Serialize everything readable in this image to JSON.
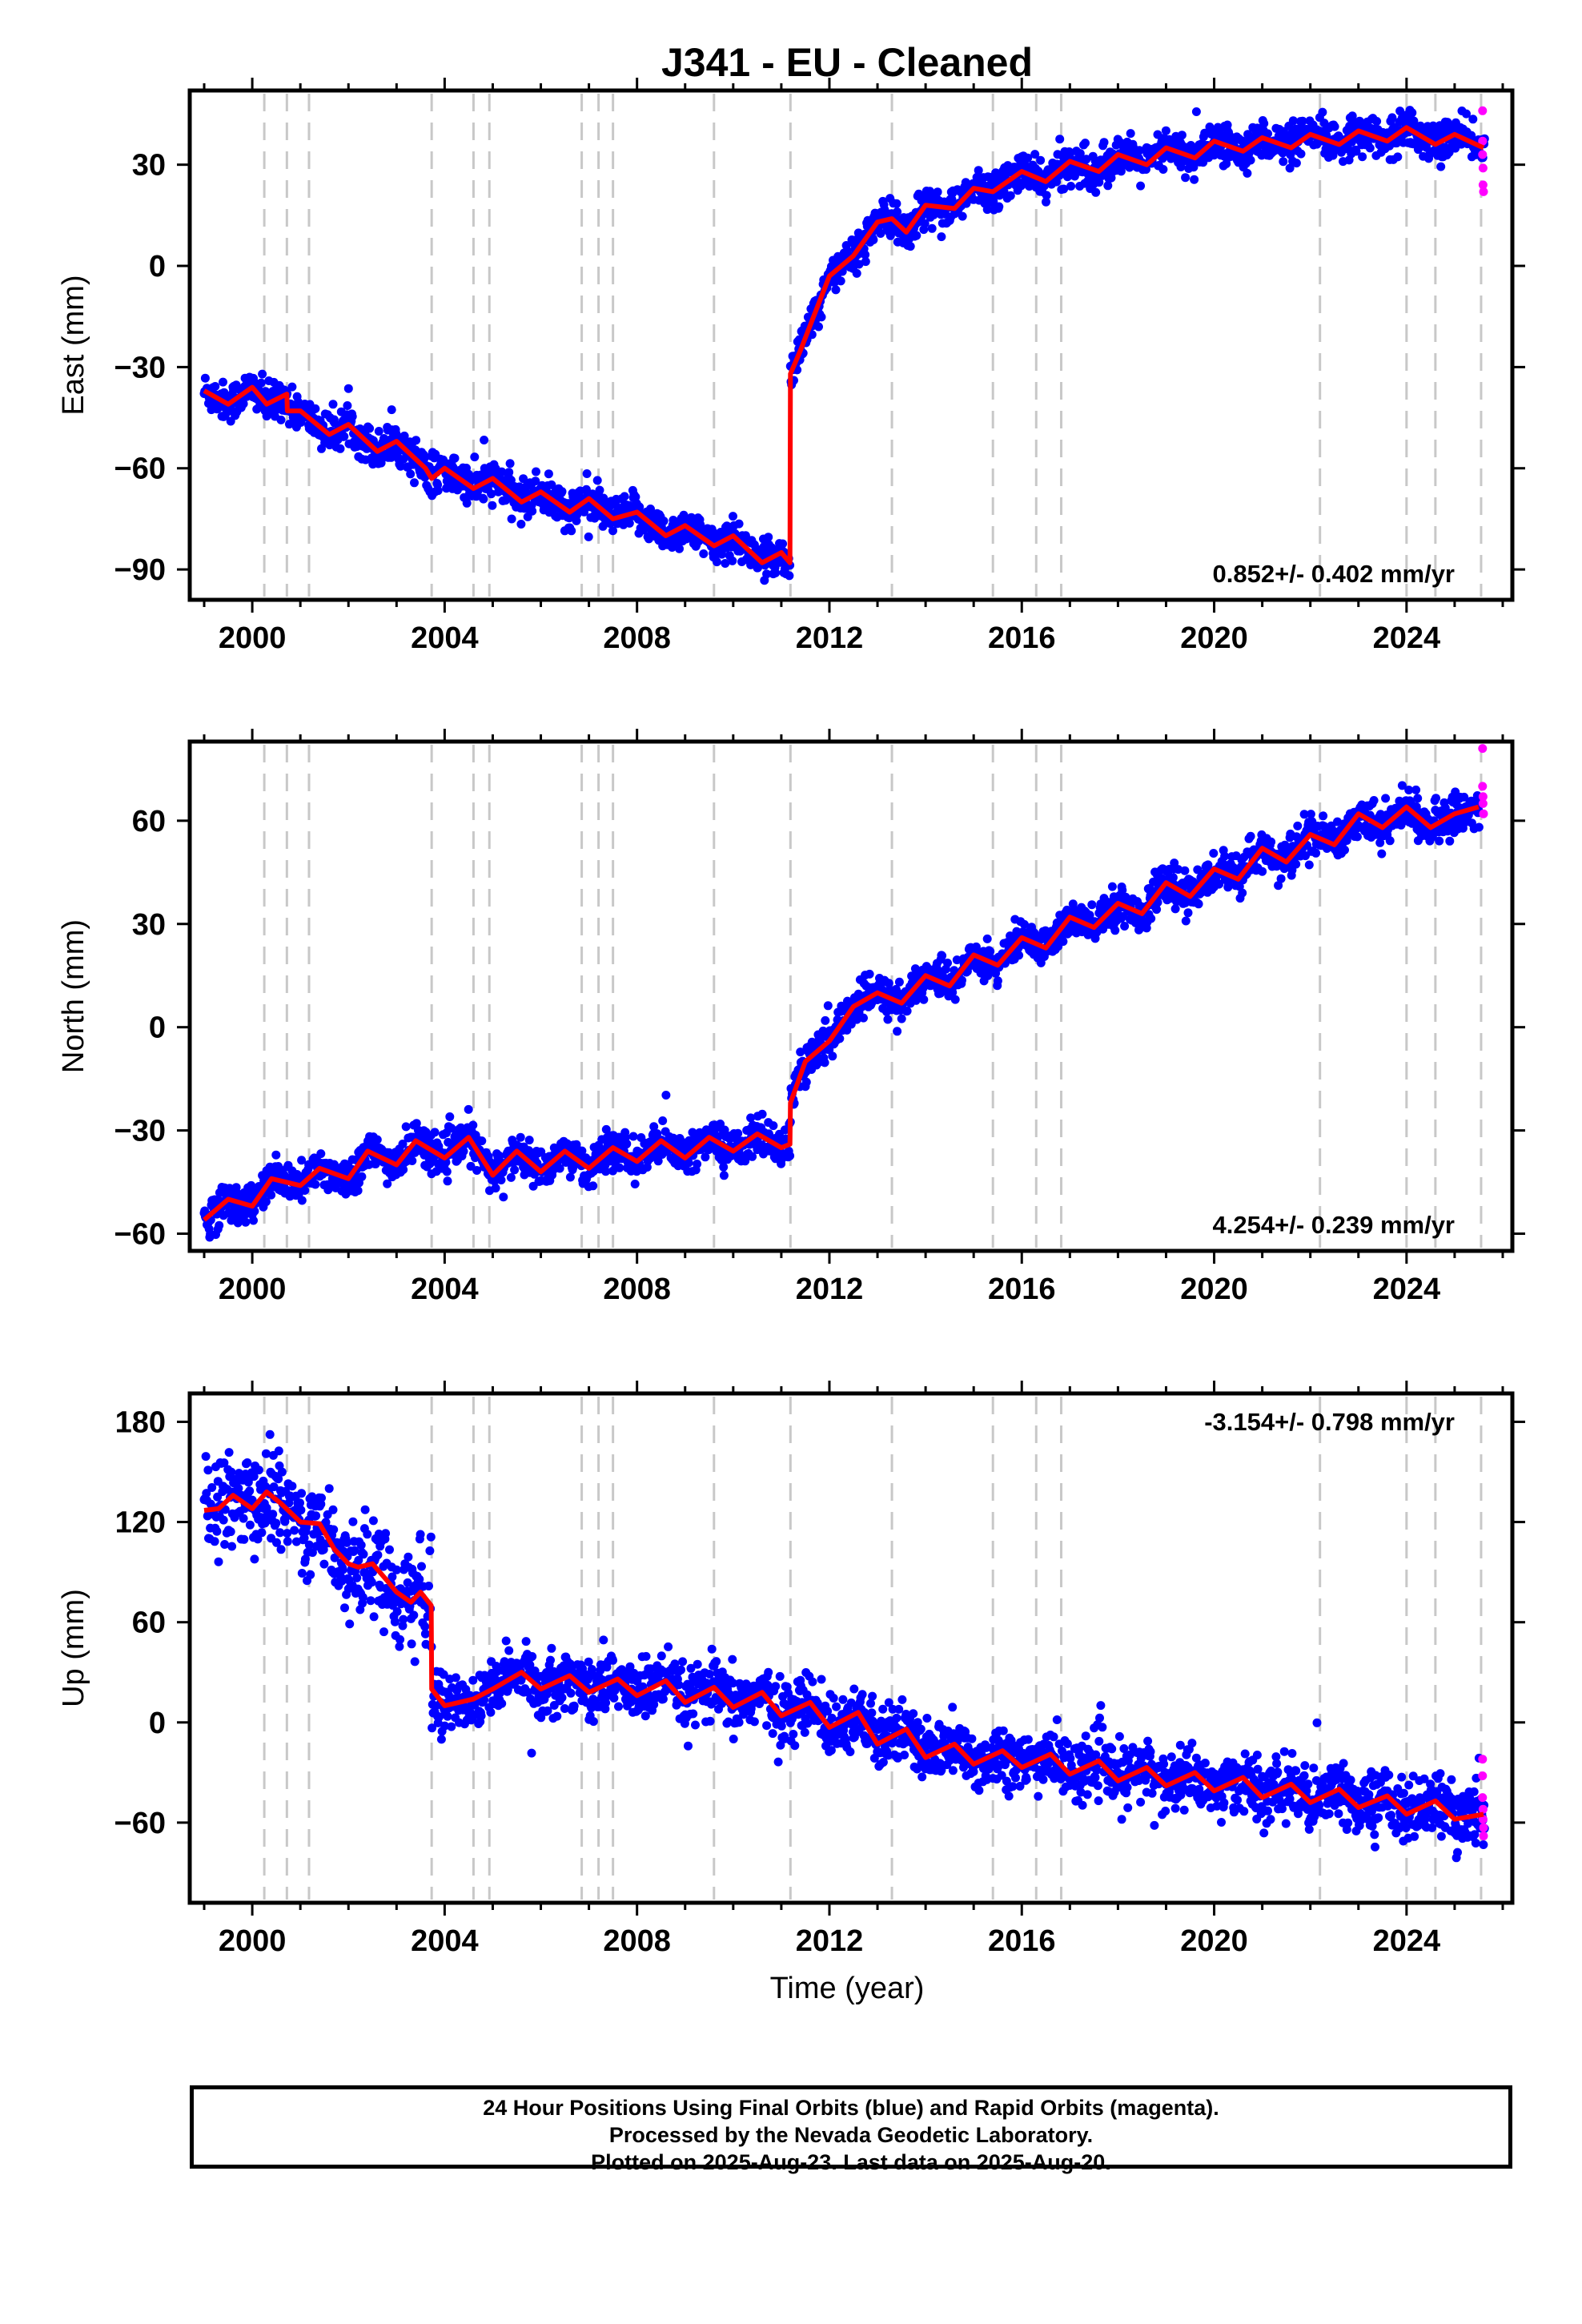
{
  "title": "J341  - EU - Cleaned",
  "colors": {
    "final": "#0000ff",
    "rapid": "#ff00ff",
    "model": "#ff0000",
    "event_line": "#c8c8c8",
    "frame": "#000000"
  },
  "caption": {
    "line1": "24 Hour Positions Using Final Orbits (blue) and Rapid Orbits (magenta).",
    "line2": "Processed by the Nevada Geodetic Laboratory.",
    "line3": "Plotted on 2025-Aug-23. Last data on 2025-Aug-20."
  },
  "chart_data": [
    {
      "type": "scatter",
      "component": "east",
      "ylabel": "East (mm)",
      "xlabel": "",
      "xlim": [
        1998.7,
        2026.2
      ],
      "ylim": [
        -99,
        52
      ],
      "xticks": [
        2000,
        2004,
        2008,
        2012,
        2016,
        2020,
        2024
      ],
      "yticks": [
        -90,
        -60,
        -30,
        0,
        30
      ],
      "rate_label": "0.852+/- 0.402 mm/yr",
      "rate_label_position": "bottom-right",
      "event_lines": [
        2000.25,
        2000.72,
        2001.18,
        2003.73,
        2004.6,
        2004.93,
        2006.85,
        2007.2,
        2007.5,
        2009.6,
        2011.19,
        2013.3,
        2015.4,
        2016.3,
        2016.82,
        2022.2,
        2024.0,
        2024.6,
        2025.55
      ],
      "model": {
        "x": [
          1999.0,
          1999.5,
          2000.0,
          2000.3,
          2000.72,
          2000.73,
          2001.0,
          2001.6,
          2002.0,
          2002.6,
          2003.0,
          2003.6,
          2003.73,
          2004.0,
          2004.6,
          2005.0,
          2005.6,
          2006.0,
          2006.6,
          2007.0,
          2007.5,
          2008.0,
          2008.6,
          2009.0,
          2009.6,
          2010.0,
          2010.6,
          2011.0,
          2011.18,
          2011.19,
          2011.4,
          2011.7,
          2012.0,
          2012.5,
          2013.0,
          2013.3,
          2013.6,
          2014.0,
          2014.6,
          2015.0,
          2015.4,
          2016.0,
          2016.5,
          2017.0,
          2017.6,
          2018.0,
          2018.6,
          2019.0,
          2019.6,
          2020.0,
          2020.6,
          2021.0,
          2021.6,
          2022.0,
          2022.6,
          2023.0,
          2023.6,
          2024.0,
          2024.6,
          2025.0,
          2025.6
        ],
        "y": [
          -37,
          -41,
          -36,
          -41,
          -38,
          -43,
          -43,
          -50,
          -47,
          -55,
          -52,
          -60,
          -63,
          -60,
          -66,
          -63,
          -70,
          -67,
          -73,
          -69,
          -75,
          -73,
          -80,
          -77,
          -83,
          -80,
          -88,
          -85,
          -88,
          -32,
          -25,
          -14,
          -3,
          3,
          13,
          14,
          10,
          18,
          17,
          23,
          22,
          28,
          25,
          31,
          28,
          33,
          30,
          35,
          32,
          37,
          34,
          38,
          35,
          39,
          36,
          40,
          37,
          41,
          36,
          39,
          35
        ]
      },
      "noise_sd": 2.8,
      "rapid_points": {
        "x": [
          2025.58,
          2025.58,
          2025.58,
          2025.59,
          2025.59,
          2025.6
        ],
        "y": [
          46,
          37,
          33,
          29,
          24,
          22
        ]
      }
    },
    {
      "type": "scatter",
      "component": "north",
      "ylabel": "North (mm)",
      "xlabel": "",
      "xlim": [
        1998.7,
        2026.2
      ],
      "ylim": [
        -65,
        83
      ],
      "xticks": [
        2000,
        2004,
        2008,
        2012,
        2016,
        2020,
        2024
      ],
      "yticks": [
        -60,
        -30,
        0,
        30,
        60
      ],
      "rate_label": "4.254+/- 0.239 mm/yr",
      "rate_label_position": "bottom-right",
      "event_lines": [
        2000.25,
        2000.72,
        2001.18,
        2003.73,
        2004.6,
        2004.93,
        2006.85,
        2007.2,
        2007.5,
        2009.6,
        2011.19,
        2013.3,
        2015.4,
        2016.3,
        2016.82,
        2022.2,
        2024.0,
        2024.6,
        2025.55
      ],
      "model": {
        "x": [
          1999.0,
          1999.5,
          2000.0,
          2000.4,
          2001.0,
          2001.4,
          2002.0,
          2002.4,
          2003.0,
          2003.4,
          2004.0,
          2004.5,
          2005.0,
          2005.5,
          2006.0,
          2006.5,
          2007.0,
          2007.5,
          2008.0,
          2008.5,
          2009.0,
          2009.5,
          2010.0,
          2010.5,
          2011.0,
          2011.18,
          2011.19,
          2011.5,
          2012.0,
          2012.5,
          2013.0,
          2013.5,
          2014.0,
          2014.5,
          2015.0,
          2015.5,
          2016.0,
          2016.5,
          2017.0,
          2017.5,
          2018.0,
          2018.5,
          2019.0,
          2019.5,
          2020.0,
          2020.5,
          2021.0,
          2021.5,
          2022.0,
          2022.5,
          2023.0,
          2023.5,
          2024.0,
          2024.5,
          2025.0,
          2025.5
        ],
        "y": [
          -56,
          -50,
          -52,
          -44,
          -46,
          -41,
          -44,
          -36,
          -40,
          -33,
          -38,
          -32,
          -43,
          -36,
          -42,
          -36,
          -41,
          -35,
          -39,
          -33,
          -38,
          -32,
          -36,
          -31,
          -35,
          -34,
          -22,
          -10,
          -4,
          6,
          10,
          7,
          15,
          12,
          21,
          18,
          26,
          23,
          32,
          29,
          36,
          33,
          42,
          38,
          46,
          43,
          52,
          48,
          56,
          53,
          62,
          58,
          64,
          58,
          62,
          64
        ]
      },
      "noise_sd": 2.8,
      "rapid_points": {
        "x": [
          2025.58,
          2025.58,
          2025.59,
          2025.59,
          2025.6
        ],
        "y": [
          81,
          70,
          67,
          65,
          62
        ]
      }
    },
    {
      "type": "scatter",
      "component": "up",
      "ylabel": "Up (mm)",
      "xlabel": "Time (year)",
      "xlim": [
        1998.7,
        2026.2
      ],
      "ylim": [
        -108,
        197
      ],
      "xticks": [
        2000,
        2004,
        2008,
        2012,
        2016,
        2020,
        2024
      ],
      "yticks": [
        -60,
        0,
        60,
        120,
        180
      ],
      "rate_label": "-3.154+/- 0.798 mm/yr",
      "rate_label_position": "top-right",
      "event_lines": [
        2000.25,
        2000.72,
        2001.18,
        2003.73,
        2004.6,
        2004.93,
        2006.85,
        2007.2,
        2007.5,
        2009.6,
        2011.19,
        2013.3,
        2015.4,
        2016.3,
        2016.82,
        2022.2,
        2024.0,
        2024.6,
        2025.55
      ],
      "model": {
        "x": [
          1999.0,
          1999.3,
          1999.6,
          2000.0,
          2000.3,
          2000.6,
          2001.0,
          2001.4,
          2001.7,
          2002.0,
          2002.2,
          2002.5,
          2002.8,
          2003.0,
          2003.3,
          2003.5,
          2003.72,
          2003.73,
          2004.0,
          2004.3,
          2004.6,
          2005.0,
          2005.6,
          2006.0,
          2006.6,
          2007.0,
          2007.6,
          2008.0,
          2008.6,
          2009.0,
          2009.6,
          2010.0,
          2010.6,
          2011.0,
          2011.6,
          2012.0,
          2012.6,
          2013.0,
          2013.6,
          2014.0,
          2014.6,
          2015.0,
          2015.6,
          2016.0,
          2016.6,
          2017.0,
          2017.6,
          2018.0,
          2018.6,
          2019.0,
          2019.6,
          2020.0,
          2020.6,
          2021.0,
          2021.6,
          2022.0,
          2022.6,
          2023.0,
          2023.6,
          2024.0,
          2024.6,
          2025.0,
          2025.6
        ],
        "y": [
          127,
          128,
          136,
          128,
          138,
          131,
          120,
          119,
          104,
          95,
          93,
          95,
          85,
          78,
          72,
          78,
          70,
          20,
          10,
          12,
          14,
          20,
          30,
          20,
          28,
          18,
          26,
          16,
          25,
          12,
          21,
          9,
          18,
          4,
          12,
          -3,
          6,
          -13,
          -4,
          -21,
          -13,
          -25,
          -17,
          -27,
          -19,
          -31,
          -23,
          -35,
          -27,
          -38,
          -30,
          -41,
          -33,
          -45,
          -37,
          -48,
          -40,
          -51,
          -44,
          -55,
          -47,
          -58,
          -55
        ]
      },
      "noise_sd": 9,
      "rapid_points": {
        "x": [
          2025.58,
          2025.58,
          2025.58,
          2025.59,
          2025.59,
          2025.6,
          2025.6
        ],
        "y": [
          -22,
          -32,
          -45,
          -52,
          -58,
          -63,
          -68
        ]
      }
    }
  ]
}
